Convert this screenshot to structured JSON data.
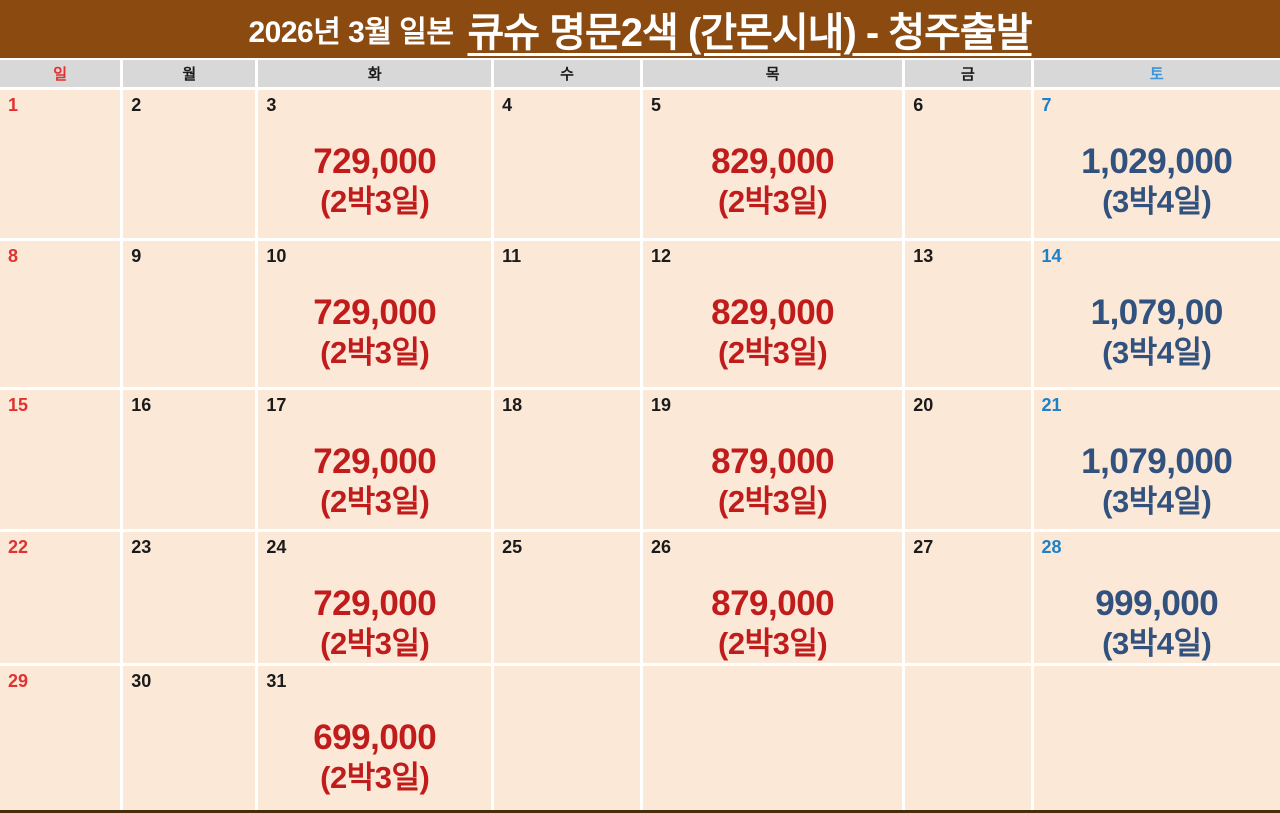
{
  "title": {
    "prefix": "2026년 3월 일본",
    "main": "큐슈 명문2색 (간몬시내) - 청주출발"
  },
  "colors": {
    "header_bg": "#8B4A10",
    "header_text": "#FFFFFF",
    "weekday_bar_bg": "#D8D8D8",
    "cell_bg": "#FBE8D7",
    "grid_gap": "#FFFFFF",
    "sunday_red": "#E03230",
    "saturday_blue": "#1E80C6",
    "weekday_text": "#1B1B1B",
    "price_red": "#C11C1C",
    "price_navy": "#31517E"
  },
  "weekday_header": [
    {
      "label": "일",
      "type": "sun"
    },
    {
      "label": "월",
      "type": "mon"
    },
    {
      "label": "화",
      "type": "tue"
    },
    {
      "label": "수",
      "type": "wed"
    },
    {
      "label": "목",
      "type": "thu"
    },
    {
      "label": "금",
      "type": "fri"
    },
    {
      "label": "토",
      "type": "sat"
    }
  ],
  "weeks": [
    [
      {
        "day": "1",
        "day_type": "sun"
      },
      {
        "day": "2",
        "day_type": "weekday"
      },
      {
        "day": "3",
        "day_type": "weekday",
        "price": "729,000",
        "duration": "(2박3일)",
        "price_style": "red"
      },
      {
        "day": "4",
        "day_type": "weekday"
      },
      {
        "day": "5",
        "day_type": "weekday",
        "price": "829,000",
        "duration": "(2박3일)",
        "price_style": "red"
      },
      {
        "day": "6",
        "day_type": "weekday"
      },
      {
        "day": "7",
        "day_type": "sat",
        "price": "1,029,000",
        "duration": "(3박4일)",
        "price_style": "navy"
      }
    ],
    [
      {
        "day": "8",
        "day_type": "sun"
      },
      {
        "day": "9",
        "day_type": "weekday"
      },
      {
        "day": "10",
        "day_type": "weekday",
        "price": "729,000",
        "duration": "(2박3일)",
        "price_style": "red"
      },
      {
        "day": "11",
        "day_type": "weekday"
      },
      {
        "day": "12",
        "day_type": "weekday",
        "price": "829,000",
        "duration": "(2박3일)",
        "price_style": "red"
      },
      {
        "day": "13",
        "day_type": "weekday"
      },
      {
        "day": "14",
        "day_type": "sat",
        "price": "1,079,00",
        "duration": "(3박4일)",
        "price_style": "navy"
      }
    ],
    [
      {
        "day": "15",
        "day_type": "sun"
      },
      {
        "day": "16",
        "day_type": "weekday"
      },
      {
        "day": "17",
        "day_type": "weekday",
        "price": "729,000",
        "duration": "(2박3일)",
        "price_style": "red"
      },
      {
        "day": "18",
        "day_type": "weekday"
      },
      {
        "day": "19",
        "day_type": "weekday",
        "price": "879,000",
        "duration": "(2박3일)",
        "price_style": "red"
      },
      {
        "day": "20",
        "day_type": "weekday"
      },
      {
        "day": "21",
        "day_type": "sat",
        "price": "1,079,000",
        "duration": "(3박4일)",
        "price_style": "navy"
      }
    ],
    [
      {
        "day": "22",
        "day_type": "sun"
      },
      {
        "day": "23",
        "day_type": "weekday"
      },
      {
        "day": "24",
        "day_type": "weekday",
        "price": "729,000",
        "duration": "(2박3일)",
        "price_style": "red"
      },
      {
        "day": "25",
        "day_type": "weekday"
      },
      {
        "day": "26",
        "day_type": "weekday",
        "price": "879,000",
        "duration": "(2박3일)",
        "price_style": "red"
      },
      {
        "day": "27",
        "day_type": "weekday"
      },
      {
        "day": "28",
        "day_type": "sat",
        "price": "999,000",
        "duration": "(3박4일)",
        "price_style": "navy"
      }
    ],
    [
      {
        "day": "29",
        "day_type": "sun"
      },
      {
        "day": "30",
        "day_type": "weekday"
      },
      {
        "day": "31",
        "day_type": "weekday",
        "price": "699,000",
        "duration": "(2박3일)",
        "price_style": "red"
      },
      {
        "day": "",
        "day_type": "weekday"
      },
      {
        "day": "",
        "day_type": "weekday"
      },
      {
        "day": "",
        "day_type": "weekday"
      },
      {
        "day": "",
        "day_type": "weekday"
      }
    ]
  ]
}
